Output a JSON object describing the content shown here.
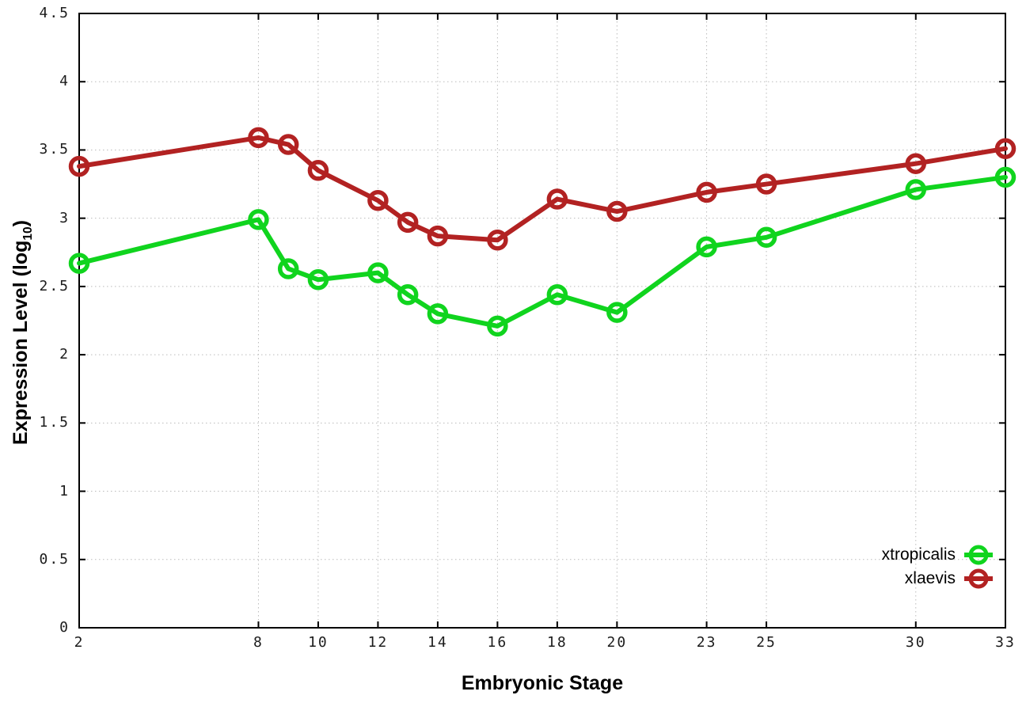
{
  "page": {
    "background": "#ffffff"
  },
  "chart_data": {
    "type": "line",
    "title": "",
    "xlabel": "Embryonic Stage",
    "ylabel": "Expression Level (log10)",
    "ylabel_parts": {
      "prefix": "Expression Level (log",
      "sub": "10",
      "suffix": ")"
    },
    "xlim": [
      2,
      33
    ],
    "ylim": [
      0,
      4.5
    ],
    "grid": true,
    "legend_position": "inside-bottom-right",
    "x_ticks": [
      2,
      8,
      10,
      12,
      14,
      16,
      18,
      20,
      23,
      25,
      30,
      33
    ],
    "x_tick_labels": [
      "2",
      "8",
      "10",
      "12",
      "14",
      "16",
      "18",
      "20",
      "23",
      "25",
      "30",
      "33"
    ],
    "y_ticks": [
      0,
      0.5,
      1,
      1.5,
      2,
      2.5,
      3,
      3.5,
      4,
      4.5
    ],
    "y_tick_labels": [
      "0",
      "0.5",
      "1",
      "1.5",
      "2",
      "2.5",
      "3",
      "3.5",
      "4",
      "4.5"
    ],
    "x": [
      2,
      8,
      9,
      10,
      12,
      13,
      14,
      16,
      18,
      20,
      23,
      25,
      30,
      33
    ],
    "series": [
      {
        "name": "xtropicalis",
        "color": "#10d41e",
        "values": [
          2.67,
          2.99,
          2.63,
          2.55,
          2.6,
          2.44,
          2.3,
          2.21,
          2.44,
          2.31,
          2.79,
          2.86,
          3.21,
          3.3
        ]
      },
      {
        "name": "xlaevis",
        "color": "#b22222",
        "values": [
          3.38,
          3.59,
          3.54,
          3.35,
          3.13,
          2.97,
          2.87,
          2.84,
          3.14,
          3.05,
          3.19,
          3.25,
          3.4,
          3.51
        ]
      }
    ],
    "style": {
      "axis_color": "#000000",
      "grid_color": "#bbbbbb",
      "tick_label_color": "#1c1c1c",
      "line_width": 6,
      "marker": "open-circle",
      "marker_radius": 10.5,
      "marker_stroke": 5.5
    }
  }
}
